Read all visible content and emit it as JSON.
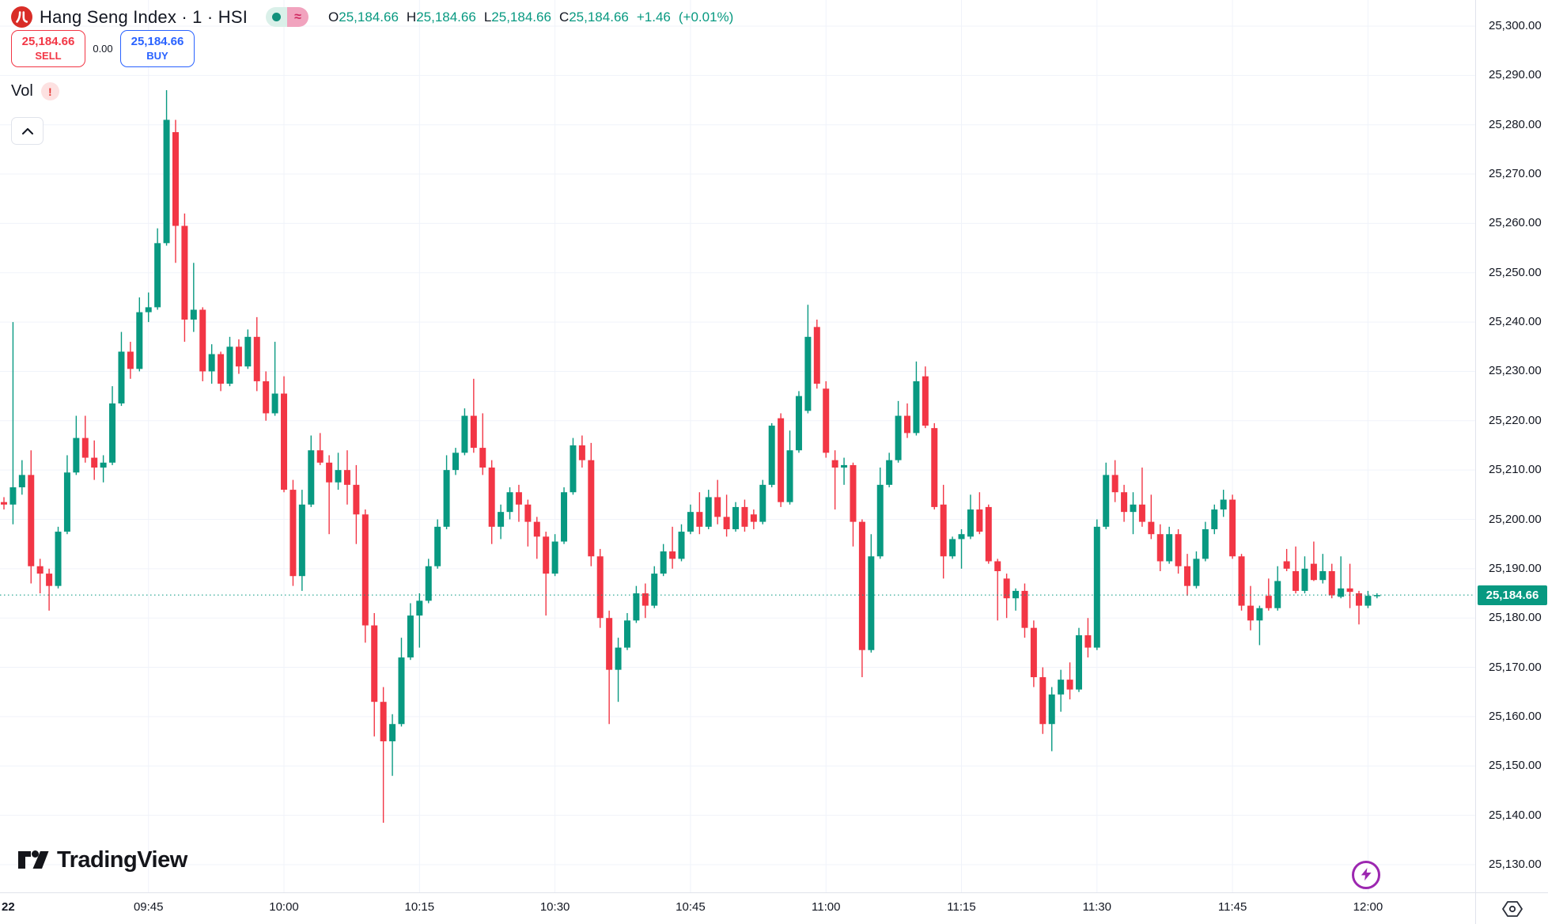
{
  "header": {
    "symbol_logo": "hang-seng-red-circle",
    "title": "Hang Seng Index · 1 · HSI",
    "status": {
      "market_dot": "open",
      "approx_symbol": "≈"
    },
    "ohlc": {
      "o_label": "O",
      "o": "25,184.66",
      "h_label": "H",
      "h": "25,184.66",
      "l_label": "L",
      "l": "25,184.66",
      "c_label": "C",
      "c": "25,184.66",
      "change": "+1.46",
      "change_pct": "(+0.01%)"
    }
  },
  "trade_panel": {
    "sell_price": "25,184.66",
    "sell_label": "SELL",
    "spread": "0.00",
    "buy_price": "25,184.66",
    "buy_label": "BUY"
  },
  "indicator": {
    "label": "Vol",
    "warning": "!"
  },
  "footer": {
    "logo_text": "TradingView"
  },
  "price_axis": {
    "labels": [
      "25,300.00",
      "25,290.00",
      "25,280.00",
      "25,270.00",
      "25,260.00",
      "25,250.00",
      "25,240.00",
      "25,230.00",
      "25,220.00",
      "25,210.00",
      "25,200.00",
      "25,190.00",
      "25,180.00",
      "25,170.00",
      "25,160.00",
      "25,150.00",
      "25,140.00",
      "25,130.00"
    ],
    "last_price_label": "25,184.66"
  },
  "time_axis": {
    "labels": [
      {
        "text": "22",
        "minute": 0,
        "bold": true
      },
      {
        "text": "09:45",
        "minute": 16
      },
      {
        "text": "10:00",
        "minute": 31
      },
      {
        "text": "10:15",
        "minute": 46
      },
      {
        "text": "10:30",
        "minute": 61
      },
      {
        "text": "10:45",
        "minute": 76
      },
      {
        "text": "11:00",
        "minute": 91
      },
      {
        "text": "11:15",
        "minute": 106
      },
      {
        "text": "11:30",
        "minute": 121
      },
      {
        "text": "11:45",
        "minute": 136
      },
      {
        "text": "12:00",
        "minute": 151
      }
    ]
  },
  "chart_data": {
    "type": "candlestick",
    "title": "Hang Seng Index",
    "ticker": "HSI",
    "interval": "1",
    "start_time": "09:29",
    "end_time": "12:01",
    "last_price": 25184.66,
    "change": 1.46,
    "change_pct": 0.01,
    "price_min": 25130,
    "price_max": 25300,
    "price_step": 10,
    "up_color": "#089981",
    "down_color": "#f23645",
    "grid_color": "#f0f3fa",
    "price_line_color": "#089981",
    "candles_ohlc": [
      [
        25203.5,
        25204.5,
        25202,
        25203
      ],
      [
        25203,
        25240,
        25199,
        25206.5
      ],
      [
        25206.5,
        25212,
        25205,
        25209
      ],
      [
        25209,
        25214,
        25187,
        25190.5
      ],
      [
        25190.5,
        25192,
        25185,
        25189
      ],
      [
        25189,
        25190,
        25181.5,
        25186.5
      ],
      [
        25186.5,
        25198.5,
        25186,
        25197.5
      ],
      [
        25197.5,
        25213,
        25197,
        25209.5
      ],
      [
        25209.5,
        25221,
        25209,
        25216.5
      ],
      [
        25216.5,
        25221,
        25211.5,
        25212.5
      ],
      [
        25212.5,
        25216,
        25208,
        25210.5
      ],
      [
        25210.5,
        25213,
        25207.5,
        25211.5
      ],
      [
        25211.5,
        25227,
        25211,
        25223.5
      ],
      [
        25223.5,
        25238,
        25223,
        25234
      ],
      [
        25234,
        25236,
        25228.5,
        25230.5
      ],
      [
        25230.5,
        25245,
        25230,
        25242
      ],
      [
        25242,
        25246,
        25240,
        25243
      ],
      [
        25243,
        25259,
        25242.5,
        25256
      ],
      [
        25256,
        25287,
        25255.5,
        25281
      ],
      [
        25278.5,
        25281,
        25252,
        25259.5
      ],
      [
        25259.5,
        25262,
        25236,
        25240.5
      ],
      [
        25240.5,
        25252,
        25238,
        25242.5
      ],
      [
        25242.5,
        25243,
        25228,
        25230
      ],
      [
        25230,
        25235.5,
        25227.5,
        25233.5
      ],
      [
        25233.5,
        25234,
        25226,
        25227.5
      ],
      [
        25227.5,
        25237,
        25227,
        25235
      ],
      [
        25235,
        25236.5,
        25229.5,
        25231
      ],
      [
        25231,
        25238.5,
        25230.5,
        25237
      ],
      [
        25237,
        25241,
        25226,
        25228
      ],
      [
        25228,
        25230,
        25220,
        25221.5
      ],
      [
        25221.5,
        25236,
        25221,
        25225.5
      ],
      [
        25225.5,
        25229,
        25205.5,
        25206
      ],
      [
        25206,
        25208,
        25186.5,
        25188.5
      ],
      [
        25188.5,
        25206,
        25185.5,
        25203
      ],
      [
        25203,
        25217,
        25202.5,
        25214
      ],
      [
        25214,
        25217.5,
        25211,
        25211.5
      ],
      [
        25211.5,
        25213,
        25197,
        25207.5
      ],
      [
        25207.5,
        25213.5,
        25206,
        25210
      ],
      [
        25210,
        25214,
        25203,
        25207
      ],
      [
        25207,
        25211,
        25195,
        25201
      ],
      [
        25201,
        25202,
        25175,
        25178.5
      ],
      [
        25178.5,
        25181,
        25156,
        25163
      ],
      [
        25163,
        25166,
        25138.5,
        25155
      ],
      [
        25155,
        25160.5,
        25148,
        25158.5
      ],
      [
        25158.5,
        25176,
        25158,
        25172
      ],
      [
        25172,
        25183,
        25171.5,
        25180.5
      ],
      [
        25180.5,
        25185,
        25174,
        25183.5
      ],
      [
        25183.5,
        25192,
        25183,
        25190.5
      ],
      [
        25190.5,
        25200,
        25190,
        25198.5
      ],
      [
        25198.5,
        25213,
        25198,
        25210
      ],
      [
        25210,
        25214.5,
        25209,
        25213.5
      ],
      [
        25213.5,
        25222.5,
        25213,
        25221
      ],
      [
        25221,
        25228.5,
        25213.5,
        25214.5
      ],
      [
        25214.5,
        25221.5,
        25209,
        25210.5
      ],
      [
        25210.5,
        25212,
        25195,
        25198.5
      ],
      [
        25198.5,
        25203,
        25196,
        25201.5
      ],
      [
        25201.5,
        25206.5,
        25200,
        25205.5
      ],
      [
        25205.5,
        25207,
        25199.5,
        25203
      ],
      [
        25203,
        25204,
        25194.5,
        25199.5
      ],
      [
        25199.5,
        25200.5,
        25192,
        25196.5
      ],
      [
        25196.5,
        25197.5,
        25180.5,
        25189
      ],
      [
        25189,
        25197,
        25188.5,
        25195.5
      ],
      [
        25195.5,
        25206.5,
        25195,
        25205.5
      ],
      [
        25205.5,
        25216.5,
        25205,
        25215
      ],
      [
        25215,
        25217,
        25210.5,
        25212
      ],
      [
        25212,
        25215.5,
        25190.5,
        25192.5
      ],
      [
        25192.5,
        25194,
        25178,
        25180
      ],
      [
        25180,
        25181.5,
        25158.5,
        25169.5
      ],
      [
        25169.5,
        25176,
        25163,
        25174
      ],
      [
        25174,
        25181,
        25173.5,
        25179.5
      ],
      [
        25179.5,
        25186.5,
        25179,
        25185
      ],
      [
        25185,
        25187,
        25180,
        25182.5
      ],
      [
        25182.5,
        25190.5,
        25182,
        25189
      ],
      [
        25189,
        25195,
        25188.5,
        25193.5
      ],
      [
        25193.5,
        25198.5,
        25190,
        25192
      ],
      [
        25192,
        25199,
        25191.5,
        25197.5
      ],
      [
        25197.5,
        25203,
        25197,
        25201.5
      ],
      [
        25201.5,
        25205.5,
        25197,
        25198.5
      ],
      [
        25198.5,
        25206,
        25198,
        25204.5
      ],
      [
        25204.5,
        25208,
        25199,
        25200.5
      ],
      [
        25200.5,
        25205,
        25196.5,
        25198
      ],
      [
        25198,
        25203.5,
        25197.5,
        25202.5
      ],
      [
        25202.5,
        25204,
        25197.5,
        25198.5
      ],
      [
        25201,
        25202,
        25198,
        25199.5
      ],
      [
        25199.5,
        25208,
        25199,
        25207
      ],
      [
        25207,
        25219.5,
        25206.5,
        25219
      ],
      [
        25220.5,
        25221.5,
        25202.5,
        25203.5
      ],
      [
        25203.5,
        25218,
        25203,
        25214
      ],
      [
        25214,
        25226,
        25213.5,
        25225
      ],
      [
        25222,
        25243.5,
        25221.5,
        25237
      ],
      [
        25239,
        25240.5,
        25226.5,
        25227.5
      ],
      [
        25226.5,
        25228,
        25212.5,
        25213.5
      ],
      [
        25212,
        25214,
        25202,
        25210.5
      ],
      [
        25210.5,
        25212.5,
        25207,
        25211
      ],
      [
        25211,
        25211.5,
        25194.5,
        25199.5
      ],
      [
        25199.5,
        25200,
        25168,
        25173.5
      ],
      [
        25173.5,
        25197,
        25173,
        25192.5
      ],
      [
        25192.5,
        25210.5,
        25192,
        25207
      ],
      [
        25207,
        25213.5,
        25206.5,
        25212
      ],
      [
        25212,
        25224,
        25211.5,
        25221
      ],
      [
        25221,
        25223.5,
        25216.5,
        25217.5
      ],
      [
        25217.5,
        25232,
        25217,
        25228
      ],
      [
        25229,
        25231,
        25218.5,
        25219
      ],
      [
        25218.5,
        25219.5,
        25202,
        25202.5
      ],
      [
        25203,
        25207,
        25188,
        25192.5
      ],
      [
        25192.5,
        25196.5,
        25192,
        25196
      ],
      [
        25196,
        25198,
        25190,
        25197
      ],
      [
        25196.5,
        25205,
        25196,
        25202
      ],
      [
        25202,
        25205.5,
        25197,
        25197.5
      ],
      [
        25202.5,
        25203,
        25191,
        25191.5
      ],
      [
        25191.5,
        25192,
        25179.5,
        25189.5
      ],
      [
        25188,
        25189,
        25180,
        25184
      ],
      [
        25184,
        25186,
        25181.5,
        25185.5
      ],
      [
        25185.5,
        25187,
        25176,
        25178
      ],
      [
        25178,
        25179.5,
        25166,
        25168
      ],
      [
        25168,
        25170,
        25156.5,
        25158.5
      ],
      [
        25158.5,
        25166,
        25153,
        25164.5
      ],
      [
        25164.5,
        25169.5,
        25161,
        25167.5
      ],
      [
        25167.5,
        25171,
        25163.5,
        25165.5
      ],
      [
        25165.5,
        25178,
        25165,
        25176.5
      ],
      [
        25176.5,
        25180,
        25172,
        25174
      ],
      [
        25174,
        25200,
        25173.5,
        25198.5
      ],
      [
        25198.5,
        25211.5,
        25198,
        25209
      ],
      [
        25209,
        25212,
        25203.5,
        25205.5
      ],
      [
        25205.5,
        25207,
        25199.5,
        25201.5
      ],
      [
        25201.5,
        25205.5,
        25197,
        25203
      ],
      [
        25203,
        25210.5,
        25198.5,
        25199.5
      ],
      [
        25199.5,
        25205,
        25196,
        25197
      ],
      [
        25197,
        25199,
        25189.5,
        25191.5
      ],
      [
        25191.5,
        25198.5,
        25191,
        25197
      ],
      [
        25197,
        25198,
        25189,
        25190.5
      ],
      [
        25190.5,
        25193,
        25184.5,
        25186.5
      ],
      [
        25186.5,
        25193.5,
        25186,
        25192
      ],
      [
        25192,
        25199.5,
        25191.5,
        25198
      ],
      [
        25198,
        25203,
        25197,
        25202
      ],
      [
        25202,
        25206,
        25200.5,
        25204
      ],
      [
        25204,
        25205,
        25192,
        25192.5
      ],
      [
        25192.5,
        25193,
        25181.5,
        25182.5
      ],
      [
        25182.5,
        25186.5,
        25177.5,
        25179.5
      ],
      [
        25179.5,
        25182.5,
        25174.5,
        25182
      ],
      [
        25184.5,
        25188,
        25181.5,
        25182
      ],
      [
        25182,
        25190.5,
        25181.5,
        25187.5
      ],
      [
        25191.5,
        25194,
        25189.5,
        25190
      ],
      [
        25189.5,
        25194.5,
        25185,
        25185.5
      ],
      [
        25185.5,
        25192.5,
        25185,
        25190
      ],
      [
        25191,
        25195.5,
        25187.5,
        25187.7
      ],
      [
        25187.7,
        25193,
        25187,
        25189.5
      ],
      [
        25189.5,
        25191,
        25184,
        25184.6
      ],
      [
        25184.3,
        25192.5,
        25184,
        25186
      ],
      [
        25186,
        25191,
        25182,
        25185.3
      ],
      [
        25185,
        25185.5,
        25178.7,
        25182.5
      ],
      [
        25182.5,
        25185.5,
        25182,
        25184.5
      ],
      [
        25184.5,
        25185,
        25184,
        25184.66
      ]
    ]
  }
}
